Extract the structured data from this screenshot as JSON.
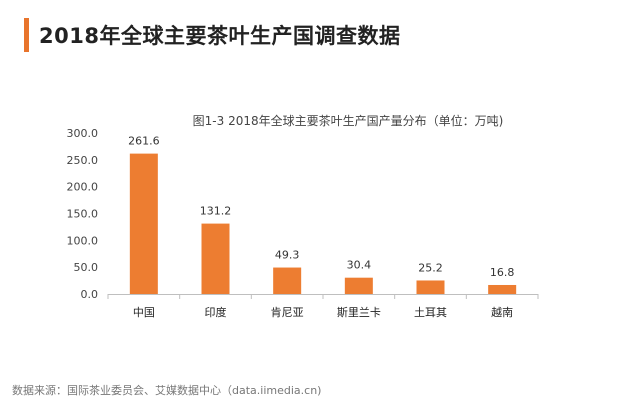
{
  "page": {
    "title": "2018年全球主要茶叶生产国调查数据",
    "source": "数据来源：国际茶业委员会、艾媒数据中心（data.iimedia.cn)"
  },
  "colors": {
    "accent": "#e8742c",
    "bar": "#ed7d31",
    "axis": "#bfbfbf"
  },
  "chart_data": {
    "type": "bar",
    "title": "图1-3 2018年全球主要茶叶生产国产量分布（单位：万吨)",
    "categories": [
      "中国",
      "印度",
      "肯尼亚",
      "斯里兰卡",
      "土耳其",
      "越南"
    ],
    "values": [
      261.6,
      131.2,
      49.3,
      30.4,
      25.2,
      16.8
    ],
    "value_labels": [
      "261.6",
      "131.2",
      "49.3",
      "30.4",
      "25.2",
      "16.8"
    ],
    "yticks": [
      "300.0",
      "250.0",
      "200.0",
      "150.0",
      "100.0",
      "50.0",
      "0.0"
    ],
    "ylim": [
      0,
      300
    ],
    "xlabel": "",
    "ylabel": "",
    "grid": false,
    "legend": "none"
  }
}
